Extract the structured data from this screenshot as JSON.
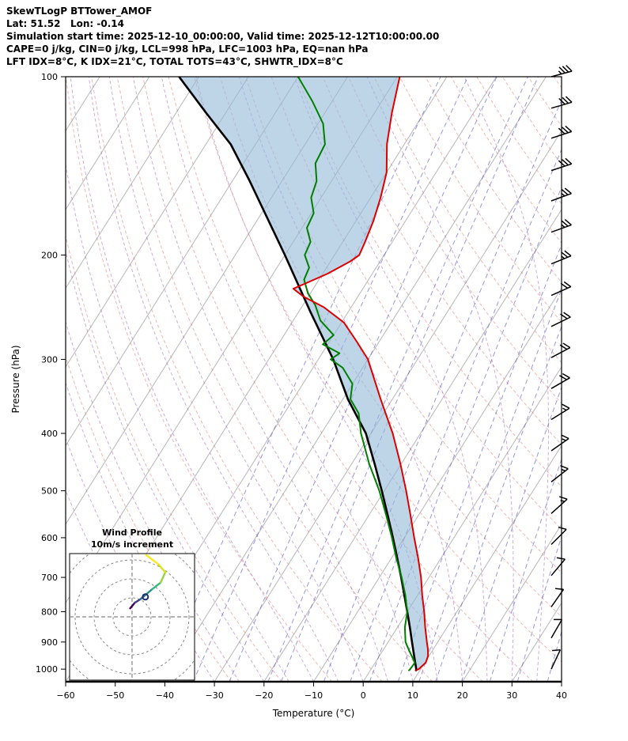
{
  "header": {
    "line1": "SkewTLogP BTTower_AMOF",
    "line2": "Lat: 51.52   Lon: -0.14",
    "line3": "Simulation start time: 2025-12-10_00:00:00, Valid time: 2025-12-12T10:00:00.00",
    "line4": "CAPE=0 j/kg, CIN=0 j/kg, LCL=998 hPa, LFC=1003 hPa, EQ=nan hPa",
    "line5": "LFT IDX=8°C, K IDX=21°C, TOTAL TOTS=43°C, SHWTR_IDX=8°C"
  },
  "axes": {
    "x_label": "Temperature (°C)",
    "y_label": "Pressure (hPa)",
    "x_ticks": [
      -60,
      -50,
      -40,
      -30,
      -20,
      -10,
      0,
      10,
      20,
      30,
      40
    ],
    "y_ticks": [
      100,
      200,
      300,
      400,
      500,
      600,
      700,
      800,
      900,
      1000
    ],
    "x_min": -60,
    "x_max": 40,
    "p_top": 100,
    "p_bottom": 1050
  },
  "inset": {
    "title_line1": "Wind Profile",
    "title_line2": "10m/s increment"
  },
  "chart_data": {
    "type": "skewt-logp",
    "indices": {
      "CAPE_jkg": 0,
      "CIN_jkg": 0,
      "LCL_hPa": 998,
      "LFC_hPa": 1003,
      "EQ_hPa": "nan",
      "LFT_IDX_C": 8,
      "K_IDX_C": 21,
      "TOTAL_TOTS_C": 43,
      "SHWTR_IDX_C": 8
    },
    "temperature_profile": {
      "pressure_hPa": [
        1005,
        1000,
        975,
        950,
        925,
        900,
        850,
        800,
        750,
        700,
        650,
        600,
        550,
        500,
        450,
        400,
        350,
        300,
        280,
        260,
        245,
        235,
        228,
        215,
        205,
        200,
        190,
        175,
        160,
        145,
        130,
        115,
        100
      ],
      "temp_C": [
        9.2,
        9.6,
        10.2,
        9.8,
        8.9,
        7.8,
        5.6,
        3.4,
        0.9,
        -1.6,
        -4.6,
        -8.0,
        -11.6,
        -15.6,
        -20.2,
        -25.6,
        -32.4,
        -40.0,
        -44.5,
        -49.5,
        -55.5,
        -61.0,
        -64.0,
        -59.0,
        -56.0,
        -55.0,
        -55.5,
        -56.5,
        -58.0,
        -60.0,
        -63.5,
        -66.5,
        -69.5
      ]
    },
    "dewpoint_profile": {
      "pressure_hPa": [
        1005,
        1000,
        975,
        950,
        925,
        900,
        850,
        800,
        750,
        700,
        650,
        600,
        550,
        500,
        450,
        400,
        370,
        350,
        330,
        310,
        300,
        293,
        283,
        273,
        258,
        243,
        232,
        220,
        210,
        200,
        190,
        180,
        170,
        160,
        150,
        140,
        130,
        120,
        110,
        100
      ],
      "dewpoint_C": [
        7.8,
        7.9,
        8.0,
        6.5,
        5.0,
        3.5,
        1.5,
        0.0,
        -2.5,
        -5.5,
        -9.0,
        -12.5,
        -16.5,
        -21.0,
        -26.5,
        -32.0,
        -35.0,
        -38.5,
        -40.0,
        -44.0,
        -47.5,
        -46.5,
        -51.0,
        -50.0,
        -54.5,
        -57.5,
        -60.5,
        -63.0,
        -63.5,
        -66.0,
        -66.5,
        -69.0,
        -69.5,
        -72.0,
        -73.0,
        -75.5,
        -76.0,
        -79.0,
        -84.0,
        -90.0
      ]
    },
    "parcel_profile": {
      "pressure_hPa": [
        1005,
        1000,
        950,
        900,
        850,
        800,
        750,
        700,
        650,
        600,
        550,
        500,
        450,
        400,
        350,
        300,
        250,
        200,
        150,
        130,
        115,
        100
      ],
      "temp_C": [
        9.2,
        9.1,
        7.0,
        4.8,
        2.5,
        0.0,
        -2.7,
        -5.6,
        -8.8,
        -12.3,
        -16.2,
        -20.5,
        -25.4,
        -31.0,
        -39.0,
        -47.0,
        -57.5,
        -70.0,
        -86.5,
        -95.0,
        -104.0,
        -114.0
      ]
    },
    "wind_barbs": {
      "pressure_hPa": [
        1000,
        886,
        785,
        695,
        616,
        546,
        483,
        428,
        379,
        336,
        298,
        264,
        234,
        207,
        183,
        162,
        144,
        127,
        113,
        100
      ],
      "speed_ms": [
        8,
        9,
        10,
        11,
        12,
        14,
        15,
        16,
        17,
        18,
        20,
        21,
        22,
        24,
        26,
        27,
        29,
        30,
        32,
        33
      ],
      "dir_from_deg": [
        205,
        210,
        215,
        220,
        225,
        228,
        232,
        235,
        238,
        240,
        242,
        244,
        246,
        248,
        250,
        250,
        252,
        252,
        254,
        255
      ]
    },
    "hodograph": {
      "ring_step_ms": 10,
      "u_ms": [
        -1,
        1.5,
        4,
        7,
        10.5,
        15,
        17.5,
        13.5,
        7.5
      ],
      "v_ms": [
        4.5,
        7.5,
        9,
        11.5,
        14.5,
        18,
        23.5,
        28,
        32.5
      ],
      "marker": {
        "u": 7,
        "v": 10.5
      }
    },
    "background": {
      "isotherm_step_C": 10,
      "dry_adiabats_C": [
        -30,
        -20,
        -10,
        0,
        10,
        20,
        30,
        40,
        50,
        60,
        70,
        80,
        90,
        100,
        110,
        120,
        130,
        140,
        150,
        160,
        170,
        180
      ],
      "moist_adiabats_C": [
        -40,
        -35,
        -30,
        -25,
        -20,
        -15,
        -10,
        -5,
        0,
        5,
        10,
        15,
        20,
        25,
        30,
        35,
        40
      ],
      "mixing_ratios_gkg": [
        0.1,
        0.2,
        0.4,
        0.8,
        1,
        2,
        3,
        4,
        6,
        8,
        10,
        14,
        20,
        28,
        40
      ]
    },
    "colors": {
      "temperature": "#dd0000",
      "dewpoint": "#007f00",
      "parcel": "#000000",
      "cape_fill": "#92b9d8",
      "isotherm": "#b0b0b0",
      "dry_adiabat": "#dd6e6e",
      "moist_adiabat": "#9b59b6",
      "mixing_ratio": "#4444cc",
      "barb": "#000000",
      "inset_grid": "#888888",
      "marker_stroke": "#1a2e6e"
    }
  }
}
